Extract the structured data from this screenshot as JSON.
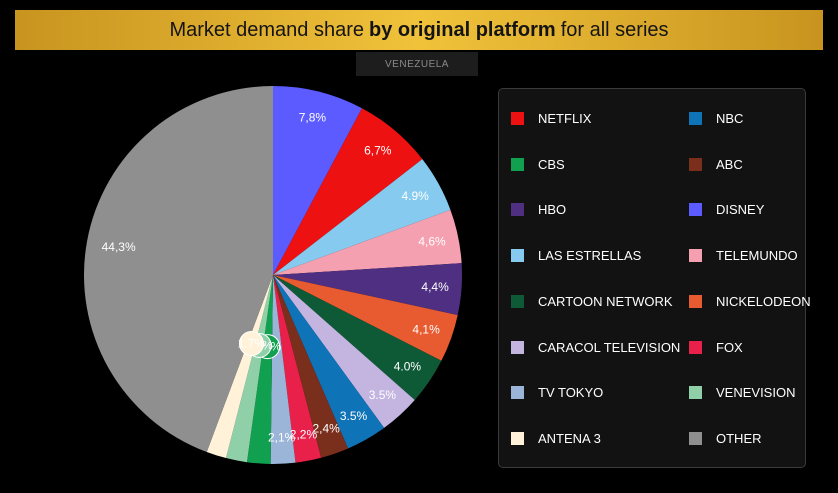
{
  "title": {
    "prefix": "Market demand share",
    "bold": "by original platform",
    "suffix": "for all series"
  },
  "country_tab": "VENEZUELA",
  "chart_data": {
    "type": "pie",
    "title": "Market demand share by original platform for all series",
    "slices": [
      {
        "label": "DISNEY",
        "value": 7.8,
        "display": "7,8%",
        "color": "#5b5bff"
      },
      {
        "label": "NETFLIX",
        "value": 6.7,
        "display": "6,7%",
        "color": "#ee1111"
      },
      {
        "label": "LAS ESTRELLAS",
        "value": 4.9,
        "display": "4.9%",
        "color": "#86cbef"
      },
      {
        "label": "TELEMUNDO",
        "value": 4.6,
        "display": "4,6%",
        "color": "#f5a0b0"
      },
      {
        "label": "HBO",
        "value": 4.4,
        "display": "4,4%",
        "color": "#4f2f82"
      },
      {
        "label": "NICKELODEON",
        "value": 4.1,
        "display": "4,1%",
        "color": "#e85a2f"
      },
      {
        "label": "CARTOON NETWORK",
        "value": 4.0,
        "display": "4.0%",
        "color": "#0e5a36"
      },
      {
        "label": "CARACOL TELEVISION",
        "value": 3.5,
        "display": "3.5%",
        "color": "#c3b4e0"
      },
      {
        "label": "NBC",
        "value": 3.5,
        "display": "3.5%",
        "color": "#0f73b8"
      },
      {
        "label": "ABC",
        "value": 2.4,
        "display": "2,4%",
        "color": "#7a2e1c"
      },
      {
        "label": "FOX",
        "value": 2.2,
        "display": "2,2%",
        "color": "#e8204a"
      },
      {
        "label": "TV TOKYO",
        "value": 2.1,
        "display": "2,1%",
        "color": "#9bb5d8"
      },
      {
        "label": "CBS",
        "value": 2.0,
        "display": "2.0%",
        "color": "#10a050"
      },
      {
        "label": "VENEVISION",
        "value": 1.8,
        "display": "1.8%",
        "color": "#8fd0a8"
      },
      {
        "label": "ANTENA 3",
        "value": 1.7,
        "display": "1.7%",
        "color": "#fff2d8"
      },
      {
        "label": "OTHER",
        "value": 44.3,
        "display": "44,3%",
        "color": "#8f8f8f"
      }
    ],
    "legend": [
      {
        "label": "NETFLIX",
        "color": "#ee1111"
      },
      {
        "label": "NBC",
        "color": "#0f73b8"
      },
      {
        "label": "CBS",
        "color": "#10a050"
      },
      {
        "label": "ABC",
        "color": "#7a2e1c"
      },
      {
        "label": "HBO",
        "color": "#4f2f82"
      },
      {
        "label": "DISNEY",
        "color": "#5b5bff"
      },
      {
        "label": "LAS ESTRELLAS",
        "color": "#86cbef"
      },
      {
        "label": "TELEMUNDO",
        "color": "#f5a0b0"
      },
      {
        "label": "CARTOON NETWORK",
        "color": "#0e5a36"
      },
      {
        "label": "NICKELODEON",
        "color": "#e85a2f"
      },
      {
        "label": "CARACOL TELEVISION",
        "color": "#c3b4e0"
      },
      {
        "label": "FOX",
        "color": "#e8204a"
      },
      {
        "label": "TV TOKYO",
        "color": "#9bb5d8"
      },
      {
        "label": "VENEVISION",
        "color": "#8fd0a8"
      },
      {
        "label": "ANTENA 3",
        "color": "#fff2d8"
      },
      {
        "label": "OTHER",
        "color": "#8f8f8f"
      }
    ],
    "legend_position": "right"
  }
}
